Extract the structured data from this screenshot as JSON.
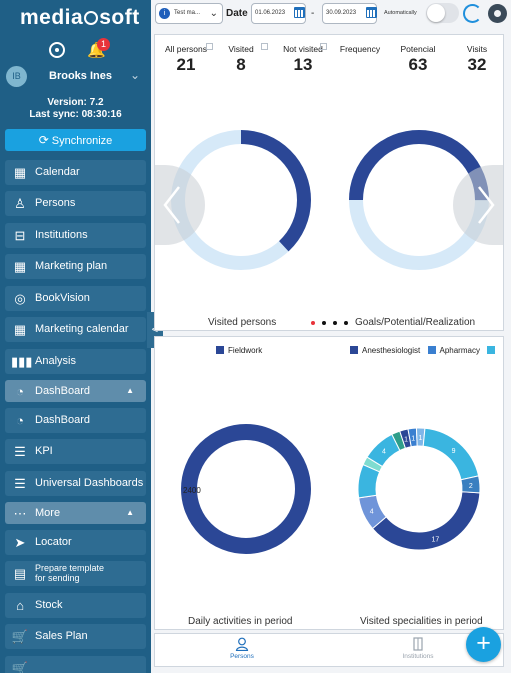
{
  "colors": {
    "sidebar": "#1f5f86",
    "accent": "#1aa1e0",
    "donut_dark": "#2b4796",
    "donut_light": "#d6e9f8",
    "badge": "#e8333a"
  },
  "sidebar": {
    "logo_left": "media",
    "logo_right": "soft",
    "notification_count": "1",
    "user_initials": "IB",
    "user_name": "Brooks Ines",
    "version": "Version: 7.2",
    "last_sync": "Last sync: 08:30:16",
    "sync_label": "Synchronize",
    "items": [
      {
        "label": "Calendar",
        "icon": "calendar-icon"
      },
      {
        "label": "Persons",
        "icon": "person-icon"
      },
      {
        "label": "Institutions",
        "icon": "bed-icon"
      },
      {
        "label": "Marketing plan",
        "icon": "marketing-plan-icon"
      },
      {
        "label": "BookVision",
        "icon": "fingerprint-icon"
      },
      {
        "label": "Marketing calendar",
        "icon": "calendar-icon"
      },
      {
        "label": "Analysis",
        "icon": "bars-icon"
      }
    ],
    "dashboard_section": "DashBoard",
    "dashboard_items": [
      {
        "label": "DashBoard",
        "icon": "pie-icon"
      },
      {
        "label": "KPI",
        "icon": "kpi-icon"
      },
      {
        "label": "Universal Dashboards",
        "icon": "list-icon"
      }
    ],
    "more_section": "More",
    "more_items": [
      {
        "label": "Locator",
        "icon": "locator-icon"
      },
      {
        "label": "Prepare template for sending",
        "line1": "Prepare template",
        "line2": "for sending",
        "icon": "template-icon"
      },
      {
        "label": "Stock",
        "icon": "home-icon"
      },
      {
        "label": "Sales Plan",
        "icon": "cart-icon"
      }
    ]
  },
  "topbar": {
    "selector_value": "Test ma...",
    "date_label": "Date",
    "date_from": "01.06.2023",
    "date_to": "30.09.2023",
    "separator": "-",
    "auto_label": "Automatically",
    "auto_enabled": false
  },
  "stats": [
    {
      "label": "All persons",
      "value": "21"
    },
    {
      "label": "Visited",
      "value": "8"
    },
    {
      "label": "Not visited",
      "value": "13"
    },
    {
      "label": "Frequency",
      "value": ""
    },
    {
      "label": "Potencial",
      "value": "63"
    },
    {
      "label": "Visits",
      "value": "32"
    }
  ],
  "top_charts": {
    "left_caption": "Visited persons",
    "right_caption": "Goals/Potential/Realization",
    "page_count": 4,
    "active_page": 0
  },
  "chart_data": [
    {
      "type": "pie",
      "title": "Visited persons",
      "categories": [
        "Visited",
        "Not visited"
      ],
      "values": [
        8,
        13
      ]
    },
    {
      "type": "pie",
      "title": "Daily activities in period",
      "legend": [
        "Fieldwork"
      ],
      "categories": [
        "Fieldwork"
      ],
      "values": [
        2400
      ],
      "labels": [
        "2400"
      ]
    },
    {
      "type": "pie",
      "title": "Visited specialities in period",
      "legend": [
        "Anesthesiologist",
        "Apharmacy"
      ],
      "values": [
        17,
        4,
        4,
        1,
        4,
        1,
        1,
        1,
        1,
        9,
        2
      ],
      "labels": [
        "17",
        "4",
        "",
        "",
        "4",
        "",
        "1",
        "1",
        "1",
        "9",
        "2"
      ],
      "colors": [
        "#2b4796",
        "#6f94d9",
        "#3ab5e0",
        "#7fdcd0",
        "#3ab5e0",
        "#2e9e8a",
        "#2b4796",
        "#3a7fd0",
        "#7fb6e8",
        "#3ab5e0",
        "#3a7fc0"
      ]
    }
  ],
  "bottom_charts": {
    "left_legend": "Fieldwork",
    "right_legend": [
      "Anesthesiologist",
      "Apharmacy"
    ],
    "left_caption": "Daily activities in period",
    "right_caption": "Visited specialities in period"
  },
  "tabs": [
    {
      "label": "Persons",
      "active": true
    },
    {
      "label": "Institutions",
      "active": false
    }
  ],
  "fab_symbol": "+"
}
